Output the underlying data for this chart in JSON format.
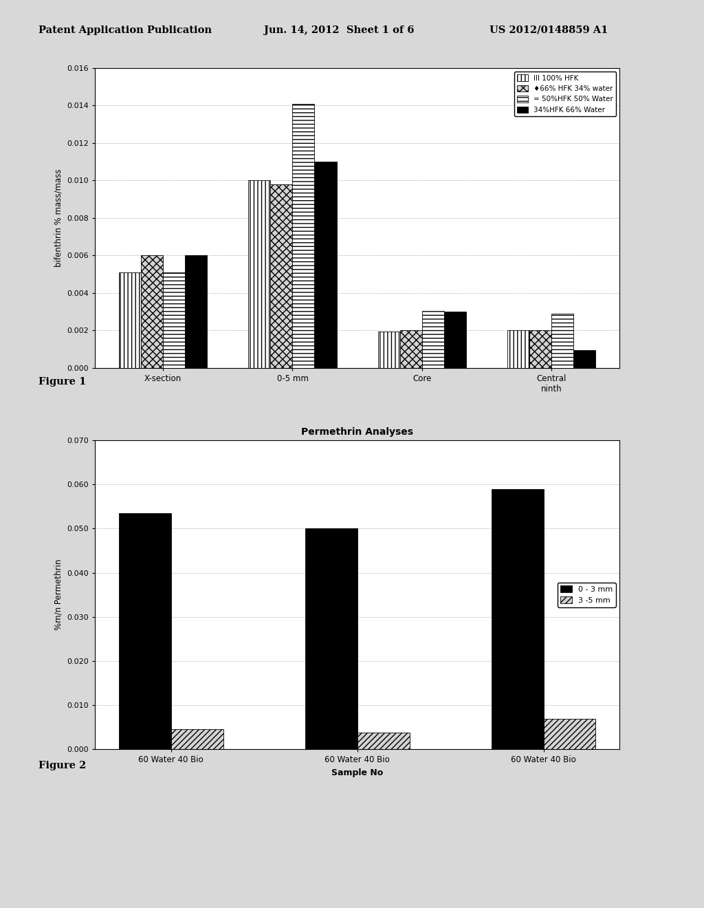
{
  "fig1": {
    "ylabel": "bifenthrin % mass/mass",
    "ylim": [
      0.0,
      0.016
    ],
    "yticks": [
      0.0,
      0.002,
      0.004,
      0.006,
      0.008,
      0.01,
      0.012,
      0.014,
      0.016
    ],
    "categories": [
      "X-section",
      "0-5 mm",
      "Core",
      "Central\nninth"
    ],
    "series": [
      {
        "label": "III 100% HFK",
        "values": [
          0.0051,
          0.01,
          0.00195,
          0.002
        ],
        "hatch": "|||",
        "facecolor": "white",
        "edgecolor": "black"
      },
      {
        "label": "♦66% HFK 34% water",
        "values": [
          0.006,
          0.0098,
          0.002,
          0.002
        ],
        "hatch": "xxx",
        "facecolor": "lightgray",
        "edgecolor": "black"
      },
      {
        "label": "= 50%HFK 50% Water",
        "values": [
          0.0051,
          0.0141,
          0.00305,
          0.0029
        ],
        "hatch": "---",
        "facecolor": "white",
        "edgecolor": "black"
      },
      {
        "label": "34%HFK 66% Water",
        "values": [
          0.006,
          0.011,
          0.003,
          0.00095
        ],
        "hatch": "",
        "facecolor": "black",
        "edgecolor": "black"
      }
    ],
    "bar_width": 0.17,
    "legend_inside": true
  },
  "fig2": {
    "title": "Permethrin Analyses",
    "xlabel": "Sample No",
    "ylabel": "%m/n Permethrin",
    "ylim": [
      0.0,
      0.07
    ],
    "yticks": [
      0.0,
      0.01,
      0.02,
      0.03,
      0.04,
      0.05,
      0.06,
      0.07
    ],
    "categories": [
      "60 Water 40 Bio",
      "60 Water 40 Bio",
      "60 Water 40 Bio"
    ],
    "series": [
      {
        "label": "0 - 3 mm",
        "values": [
          0.0535,
          0.05,
          0.059
        ],
        "hatch": "",
        "facecolor": "black",
        "edgecolor": "black"
      },
      {
        "label": "3 -5 mm",
        "values": [
          0.0045,
          0.0038,
          0.0068
        ],
        "hatch": "////",
        "facecolor": "lightgray",
        "edgecolor": "black"
      }
    ],
    "bar_width": 0.28
  },
  "bg_color": "#d8d8d8",
  "chart_border_color": "#888888",
  "header_left": "Patent Application Publication",
  "header_mid": "Jun. 14, 2012  Sheet 1 of 6",
  "header_right": "US 2012/0148859 A1"
}
